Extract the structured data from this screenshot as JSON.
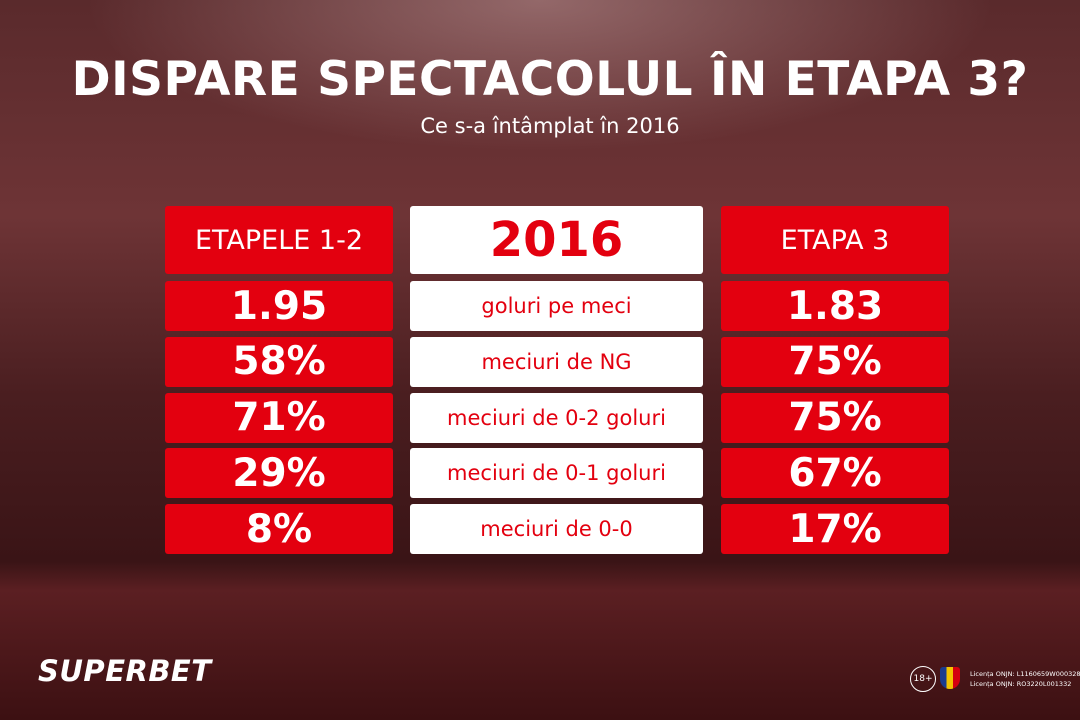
{
  "header": {
    "title": "DISPARE SPECTACOLUL ÎN ETAPA 3?",
    "subtitle": "Ce s-a întâmplat în 2016"
  },
  "table": {
    "headers": [
      "ETAPELE 1-2",
      "2016",
      "ETAPA 3"
    ],
    "rows": [
      [
        "1.95",
        "goluri pe meci",
        "1.83"
      ],
      [
        "58%",
        "meciuri de NG",
        "75%"
      ],
      [
        "71%",
        "meciuri de 0-2 goluri",
        "75%"
      ],
      [
        "29%",
        "meciuri de 0-1 goluri",
        "67%"
      ],
      [
        "8%",
        "meciuri de 0-0",
        "17%"
      ]
    ]
  },
  "footer": {
    "brand": "SUPERBET",
    "age": "18+",
    "license": [
      "Licența ONJN: L1160659W000328",
      "Licența ONJN: RO3220L001332"
    ]
  }
}
